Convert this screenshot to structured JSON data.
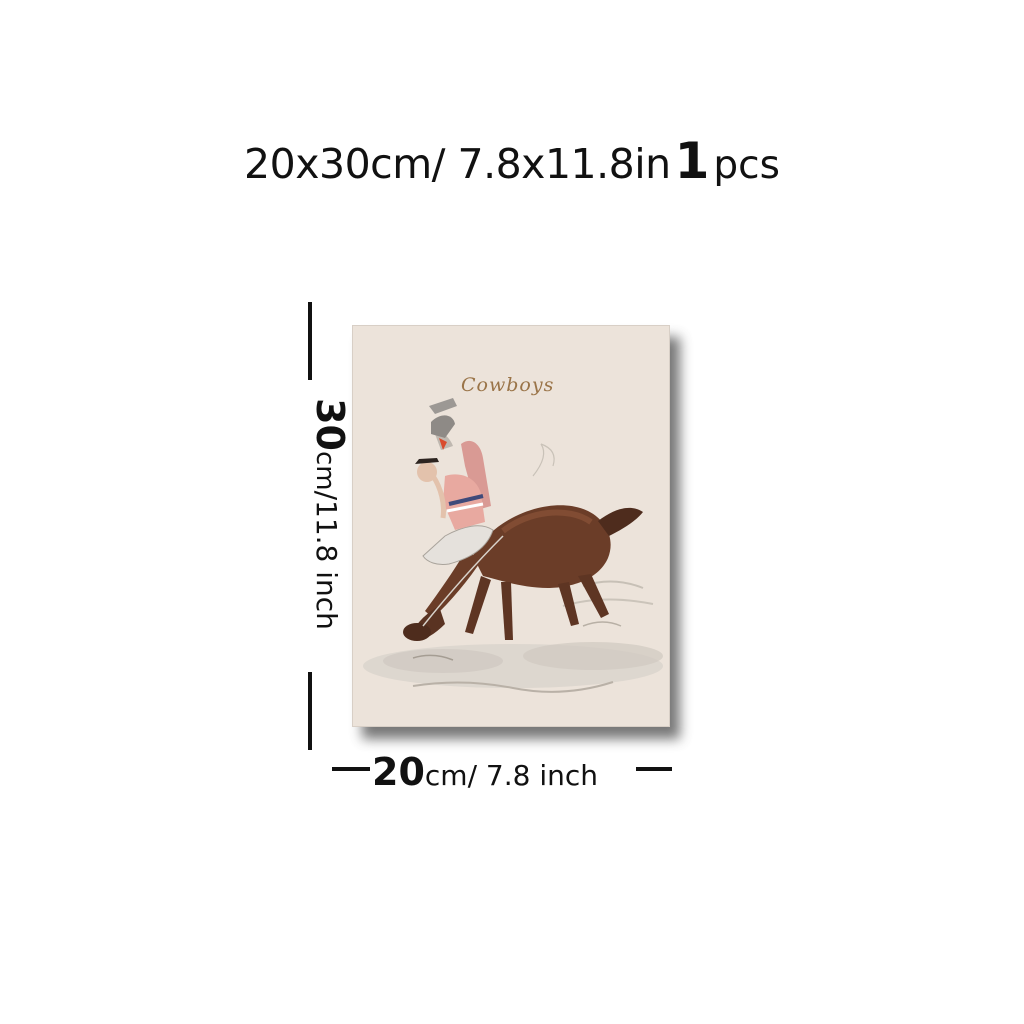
{
  "title": {
    "size": "20x30cm/ 7.8x11.8in",
    "quantity": "1",
    "unit": "pcs"
  },
  "canvas": {
    "title": "Cowboys",
    "background_color": "#ece3da",
    "title_color": "#9a7448"
  },
  "dimensions": {
    "height": {
      "number": "30",
      "unit_cm": "cm",
      "rest": "/11.8 inch"
    },
    "width": {
      "number": "20",
      "unit_cm": "cm",
      "rest": "/ 7.8 inch"
    }
  }
}
